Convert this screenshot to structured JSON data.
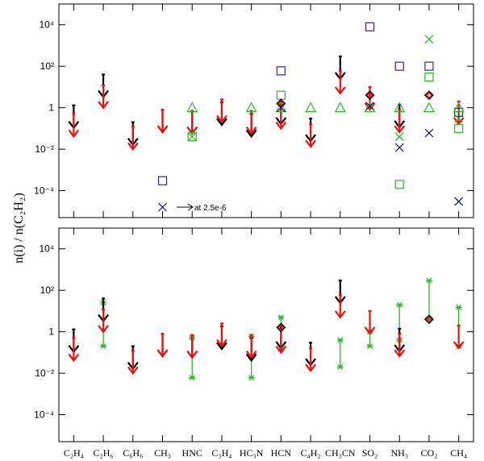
{
  "chart_data": {
    "type": "scatter",
    "y_axis_label": "n(i) / n(C₂H₂)",
    "y_scale": "log",
    "ylim": [
      5e-06,
      100000
    ],
    "y_ticks": [
      {
        "value": 0.0001,
        "label": "10⁻⁴"
      },
      {
        "value": 0.01,
        "label": "10⁻²"
      },
      {
        "value": 1,
        "label": "1"
      },
      {
        "value": 100,
        "label": "10²"
      },
      {
        "value": 10000,
        "label": "10⁴"
      }
    ],
    "categories": [
      "C₂H₄",
      "C₂H₆",
      "C₆H₆",
      "CH₃",
      "HNC",
      "C₃H₄",
      "HC₃N",
      "HCN",
      "C₄H₂",
      "CH₃CN",
      "SO₂",
      "NH₃",
      "CO₂",
      "CH₄"
    ],
    "colors": {
      "black_limit": "#000000",
      "red_limit": "#ee1111",
      "purple": "#3a1f8c",
      "green": "#22bb22",
      "navy": "#1a1a7a"
    },
    "top_panel": {
      "black_upper_limits": [
        {
          "category": "C₂H₄",
          "value": 1.3
        },
        {
          "category": "C₂H₆",
          "value": 40
        },
        {
          "category": "C₆H₆",
          "value": 0.2
        },
        {
          "category": "CH₃",
          "value": 0.8
        },
        {
          "category": "HNC",
          "value": 0.7
        },
        {
          "category": "C₃H₄",
          "value": 1.8
        },
        {
          "category": "HC₃N",
          "value": 0.5
        },
        {
          "category": "HCN",
          "value": 2.0
        },
        {
          "category": "C₄H₂",
          "value": 0.3
        },
        {
          "category": "CH₃CN",
          "value": 300
        },
        {
          "category": "NH₃",
          "value": 1.4
        }
      ],
      "red_upper_limits": [
        {
          "category": "C₂H₄",
          "value": 0.5
        },
        {
          "category": "C₂H₆",
          "value": 12
        },
        {
          "category": "C₆H₆",
          "value": 0.12
        },
        {
          "category": "CH₃",
          "value": 0.8
        },
        {
          "category": "HNC",
          "value": 0.7
        },
        {
          "category": "C₃H₄",
          "value": 2.5
        },
        {
          "category": "HC₃N",
          "value": 0.7
        },
        {
          "category": "HCN",
          "value": 1.2
        },
        {
          "category": "C₄H₂",
          "value": 0.16
        },
        {
          "category": "CH₃CN",
          "value": 60
        },
        {
          "category": "SO₂",
          "value": 10
        },
        {
          "category": "NH₃",
          "value": 0.8
        },
        {
          "category": "CH₄",
          "value": 2.0
        }
      ],
      "diamonds": [
        {
          "category": "HCN",
          "value": 1.6
        },
        {
          "category": "SO₂",
          "value": 4
        },
        {
          "category": "CO₂",
          "value": 4
        }
      ],
      "purple_squares": [
        {
          "category": "CH₃",
          "value": 0.0003
        },
        {
          "category": "HCN",
          "value": 60
        },
        {
          "category": "SO₂",
          "value": 8000
        },
        {
          "category": "NH₃",
          "value": 100
        },
        {
          "category": "CO₂",
          "value": 100
        },
        {
          "category": "CH₄",
          "value": 0.6
        }
      ],
      "green_squares": [
        {
          "category": "HNC",
          "value": 0.04
        },
        {
          "category": "HCN",
          "value": 4
        },
        {
          "category": "NH₃",
          "value": 0.0002
        },
        {
          "category": "CO₂",
          "value": 30
        },
        {
          "category": "CH₄",
          "value": 0.1
        }
      ],
      "green_triangles": [
        {
          "category": "HNC",
          "value": 1
        },
        {
          "category": "HC₃N",
          "value": 1
        },
        {
          "category": "HCN",
          "value": 1
        },
        {
          "category": "C₄H₂",
          "value": 1
        },
        {
          "category": "CH₃CN",
          "value": 1
        },
        {
          "category": "SO₂",
          "value": 1
        },
        {
          "category": "NH₃",
          "value": 1
        },
        {
          "category": "CO₂",
          "value": 1
        },
        {
          "category": "CH₄",
          "value": 1
        }
      ],
      "green_crosses": [
        {
          "category": "HNC",
          "value": 0.04
        },
        {
          "category": "NH₃",
          "value": 0.04
        },
        {
          "category": "CO₂",
          "value": 2000
        },
        {
          "category": "CH₄",
          "value": 0.3
        }
      ],
      "navy_crosses": [
        {
          "category": "HCN",
          "value": 1
        },
        {
          "category": "SO₂",
          "value": 1.2
        },
        {
          "category": "NH₃",
          "value": 0.012
        },
        {
          "category": "CO₂",
          "value": 0.06
        },
        {
          "category": "CH₄",
          "value": 3e-05
        }
      ],
      "offscale_marker": {
        "category": "CH₃",
        "value": 2.5e-06,
        "label": "at 2.5e-6"
      }
    },
    "bottom_panel": {
      "black_upper_limits": [
        {
          "category": "C₂H₄",
          "value": 1.3
        },
        {
          "category": "C₂H₆",
          "value": 40
        },
        {
          "category": "C₆H₆",
          "value": 0.2
        },
        {
          "category": "CH₃",
          "value": 0.8
        },
        {
          "category": "HNC",
          "value": 0.7
        },
        {
          "category": "C₃H₄",
          "value": 1.8
        },
        {
          "category": "HC₃N",
          "value": 0.5
        },
        {
          "category": "HCN",
          "value": 2.0
        },
        {
          "category": "C₄H₂",
          "value": 0.3
        },
        {
          "category": "CH₃CN",
          "value": 300
        },
        {
          "category": "NH₃",
          "value": 1.4
        }
      ],
      "red_upper_limits": [
        {
          "category": "C₂H₄",
          "value": 0.5
        },
        {
          "category": "C₂H₆",
          "value": 12
        },
        {
          "category": "C₆H₆",
          "value": 0.12
        },
        {
          "category": "CH₃",
          "value": 0.8
        },
        {
          "category": "HNC",
          "value": 0.7
        },
        {
          "category": "C₃H₄",
          "value": 2.5
        },
        {
          "category": "HC₃N",
          "value": 0.7
        },
        {
          "category": "HCN",
          "value": 1.2
        },
        {
          "category": "C₄H₂",
          "value": 0.16
        },
        {
          "category": "CH₃CN",
          "value": 60
        },
        {
          "category": "SO₂",
          "value": 10
        },
        {
          "category": "NH₃",
          "value": 0.8
        },
        {
          "category": "CH₄",
          "value": 2.0
        }
      ],
      "diamonds": [
        {
          "category": "HCN",
          "value": 1.6
        },
        {
          "category": "CO₂",
          "value": 4
        }
      ],
      "green_ranges": [
        {
          "category": "C₂H₆",
          "low": 0.2,
          "high": 25
        },
        {
          "category": "HNC",
          "low": 0.006,
          "high": 0.5
        },
        {
          "category": "HC₃N",
          "low": 0.006,
          "high": 0.6
        },
        {
          "category": "HCN",
          "low": 0.15,
          "high": 5
        },
        {
          "category": "CH₃CN",
          "low": 0.02,
          "high": 0.4
        },
        {
          "category": "SO₂",
          "low": 0.2,
          "high": 1
        },
        {
          "category": "NH₃",
          "low": 0.4,
          "high": 20
        },
        {
          "category": "CO₂",
          "low": 4,
          "high": 300
        },
        {
          "category": "CH₄",
          "low": 0.2,
          "high": 15
        }
      ]
    }
  }
}
